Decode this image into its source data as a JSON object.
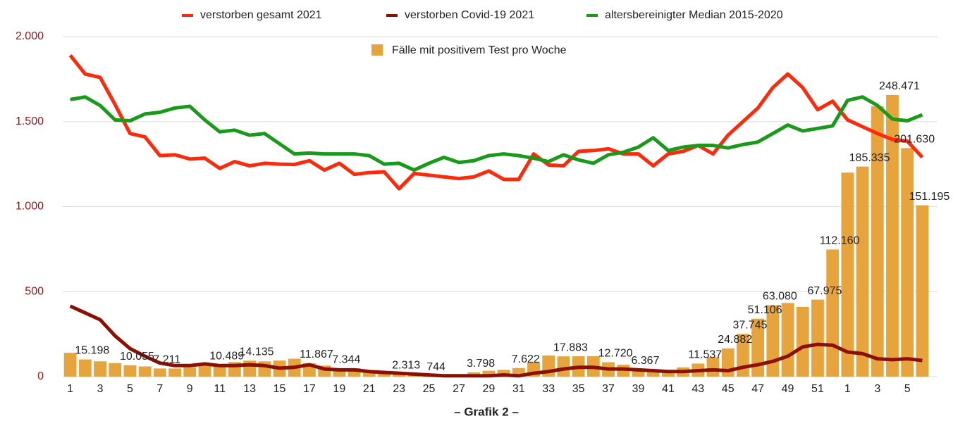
{
  "chart_data": {
    "type": "combo",
    "title": "– Grafik 2 –",
    "categories": [
      1,
      null,
      3,
      null,
      5,
      null,
      7,
      null,
      9,
      null,
      11,
      null,
      13,
      null,
      15,
      null,
      17,
      null,
      19,
      null,
      21,
      null,
      23,
      null,
      25,
      null,
      27,
      null,
      29,
      null,
      31,
      null,
      33,
      null,
      35,
      null,
      37,
      null,
      39,
      null,
      41,
      null,
      43,
      null,
      45,
      null,
      47,
      null,
      49,
      null,
      51,
      null,
      1,
      null,
      3,
      null,
      5,
      null
    ],
    "ylim": [
      0,
      2000
    ],
    "yticks": [
      {
        "value": 0,
        "label": "0"
      },
      {
        "value": 500,
        "label": "500"
      },
      {
        "value": 1000,
        "label": "1.000"
      },
      {
        "value": 1500,
        "label": "1.500"
      },
      {
        "value": 2000,
        "label": "2.000"
      }
    ],
    "y2lim": [
      0,
      300000
    ],
    "grid": true,
    "series": [
      {
        "name": "verstorben gesamt 2021",
        "type": "line",
        "color": "#ff2a0a",
        "values": [
          1890,
          1780,
          1760,
          1600,
          1430,
          1410,
          1300,
          1305,
          1280,
          1285,
          1225,
          1265,
          1240,
          1255,
          1250,
          1248,
          1270,
          1215,
          1255,
          1190,
          1200,
          1205,
          1105,
          1195,
          1185,
          1175,
          1165,
          1175,
          1210,
          1160,
          1160,
          1310,
          1245,
          1240,
          1325,
          1330,
          1340,
          1310,
          1310,
          1240,
          1310,
          1325,
          1360,
          1310,
          1420,
          1500,
          1580,
          1700,
          1780,
          1700,
          1570,
          1620,
          1510,
          1470,
          1430,
          1395,
          1385,
          1290
        ]
      },
      {
        "name": "verstorben Covid-19 2021",
        "type": "line",
        "color": "#8b1000",
        "values": [
          415,
          375,
          335,
          240,
          165,
          120,
          80,
          65,
          65,
          75,
          65,
          65,
          70,
          65,
          50,
          55,
          70,
          45,
          40,
          40,
          30,
          25,
          20,
          15,
          10,
          5,
          5,
          5,
          5,
          10,
          5,
          20,
          30,
          45,
          55,
          55,
          45,
          45,
          40,
          35,
          30,
          30,
          35,
          40,
          35,
          55,
          70,
          90,
          120,
          175,
          190,
          185,
          145,
          135,
          105,
          100,
          105,
          95
        ]
      },
      {
        "name": "altersbereinigter Median 2015-2020",
        "type": "line",
        "color": "#1a9a1a",
        "values": [
          1630,
          1645,
          1595,
          1510,
          1505,
          1545,
          1555,
          1580,
          1590,
          1510,
          1440,
          1450,
          1420,
          1430,
          1370,
          1310,
          1315,
          1310,
          1310,
          1310,
          1300,
          1250,
          1255,
          1215,
          1255,
          1290,
          1260,
          1270,
          1300,
          1310,
          1300,
          1285,
          1265,
          1305,
          1275,
          1255,
          1305,
          1320,
          1350,
          1405,
          1330,
          1350,
          1360,
          1360,
          1345,
          1365,
          1380,
          1430,
          1480,
          1445,
          1460,
          1475,
          1625,
          1645,
          1595,
          1515,
          1505,
          1540
        ]
      },
      {
        "name": "Fälle mit positivem Test pro Woche",
        "type": "bar",
        "axis": "y2",
        "color": "#e8a43c",
        "values": [
          21000,
          15198,
          13500,
          12000,
          10055,
          9000,
          7211,
          7200,
          8200,
          9800,
          10489,
          12800,
          14135,
          13500,
          14200,
          15800,
          11867,
          9800,
          7344,
          7500,
          5200,
          3800,
          2313,
          1200,
          744,
          750,
          1500,
          3798,
          5200,
          6000,
          7622,
          12800,
          18700,
          17883,
          18000,
          18000,
          12720,
          10500,
          6367,
          5300,
          6000,
          8200,
          11537,
          17200,
          24882,
          37745,
          51106,
          63080,
          65000,
          61500,
          67975,
          112160,
          180000,
          185335,
          238500,
          248471,
          201630,
          151195
        ],
        "value_labels": [
          null,
          "15.198",
          null,
          null,
          "10.055",
          null,
          "7.211",
          null,
          null,
          null,
          "10.489",
          null,
          "14.135",
          null,
          null,
          null,
          "11.867",
          null,
          "7.344",
          null,
          null,
          null,
          "2.313",
          null,
          "744",
          null,
          null,
          "3.798",
          null,
          null,
          "7.622",
          null,
          null,
          "17.883",
          null,
          null,
          "12.720",
          null,
          "6.367",
          null,
          null,
          null,
          "11.537",
          null,
          "24.882",
          "37.745",
          "51.106",
          "63.080",
          null,
          null,
          "67.975",
          "112.160",
          null,
          "185.335",
          null,
          "248.471",
          "201.630",
          "151.195"
        ]
      }
    ]
  }
}
